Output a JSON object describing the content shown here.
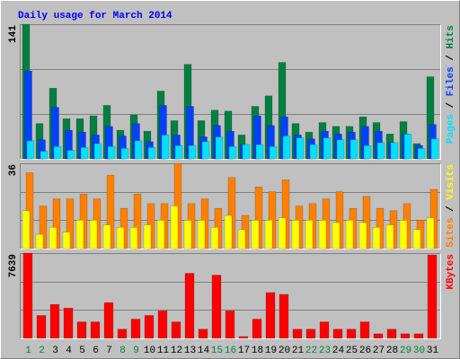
{
  "chart_data": [
    {
      "type": "bar",
      "title": "Daily usage for March 2014",
      "series": [
        {
          "name": "Pages",
          "color": "#00e0ff",
          "values": [
            19,
            8,
            13,
            9,
            12,
            16,
            13,
            11,
            19,
            12,
            25,
            14,
            14,
            18,
            23,
            13,
            15,
            15,
            13,
            24,
            22,
            15,
            22,
            20,
            20,
            14,
            17,
            17,
            26,
            11,
            21
          ]
        },
        {
          "name": "Files",
          "color": "#0040ff",
          "values": [
            92,
            20,
            54,
            30,
            28,
            25,
            34,
            24,
            37,
            18,
            56,
            25,
            55,
            23,
            35,
            29,
            15,
            45,
            35,
            44,
            25,
            21,
            29,
            26,
            28,
            34,
            29,
            17,
            26,
            14,
            36
          ]
        },
        {
          "name": "Hits",
          "color": "#008040",
          "values": [
            141,
            37,
            74,
            42,
            42,
            45,
            56,
            30,
            46,
            29,
            71,
            40,
            99,
            40,
            51,
            50,
            25,
            55,
            66,
            101,
            37,
            28,
            38,
            34,
            34,
            44,
            38,
            26,
            39,
            16,
            86
          ]
        }
      ],
      "legend_separator": " / ",
      "ylim": [
        0,
        141
      ],
      "yticks": [
        141
      ]
    },
    {
      "type": "bar",
      "series": [
        {
          "name": "Sites",
          "color": "#ff8000",
          "values": [
            32,
            18,
            21,
            21,
            23,
            21,
            31,
            17,
            23,
            19,
            19,
            36,
            19,
            21,
            17,
            30,
            14,
            26,
            24,
            29,
            18,
            19,
            21,
            24,
            17,
            22,
            17,
            16,
            19,
            12,
            25
          ]
        },
        {
          "name": "Visits",
          "color": "#ffff00",
          "values": [
            16,
            6,
            9,
            7,
            12,
            12,
            10,
            9,
            9,
            10,
            12,
            18,
            12,
            12,
            9,
            14,
            8,
            12,
            12,
            13,
            12,
            12,
            12,
            11,
            12,
            11,
            9,
            10,
            12,
            8,
            13
          ]
        }
      ],
      "legend_separator": " / ",
      "ylim": [
        0,
        36
      ],
      "yticks": [
        36
      ]
    },
    {
      "type": "bar",
      "series": [
        {
          "name": "KBytes",
          "color": "#ff0000",
          "values": [
            7639,
            2053,
            3039,
            2710,
            1478,
            1478,
            3203,
            821,
            1724,
            2053,
            2464,
            1478,
            5831,
            821,
            5667,
            2464,
            164,
            1724,
            4107,
            3942,
            821,
            821,
            1478,
            821,
            821,
            1478,
            411,
            821,
            411,
            411,
            7475
          ]
        }
      ],
      "ylim": [
        0,
        7639
      ],
      "yticks": [
        7639
      ],
      "categories": [
        "1",
        "2",
        "3",
        "4",
        "5",
        "6",
        "7",
        "8",
        "9",
        "10",
        "11",
        "12",
        "13",
        "14",
        "15",
        "16",
        "17",
        "18",
        "19",
        "20",
        "21",
        "22",
        "23",
        "24",
        "25",
        "26",
        "27",
        "28",
        "29",
        "30",
        "31"
      ],
      "label_colors": [
        "#008040",
        "#008040",
        "#000000",
        "#000000",
        "#000000",
        "#000000",
        "#000000",
        "#008040",
        "#008040",
        "#000000",
        "#000000",
        "#000000",
        "#000000",
        "#000000",
        "#008040",
        "#008040",
        "#000000",
        "#000000",
        "#000000",
        "#000000",
        "#000000",
        "#008040",
        "#008040",
        "#000000",
        "#000000",
        "#000000",
        "#000000",
        "#000000",
        "#008040",
        "#008040",
        "#000000"
      ]
    }
  ]
}
